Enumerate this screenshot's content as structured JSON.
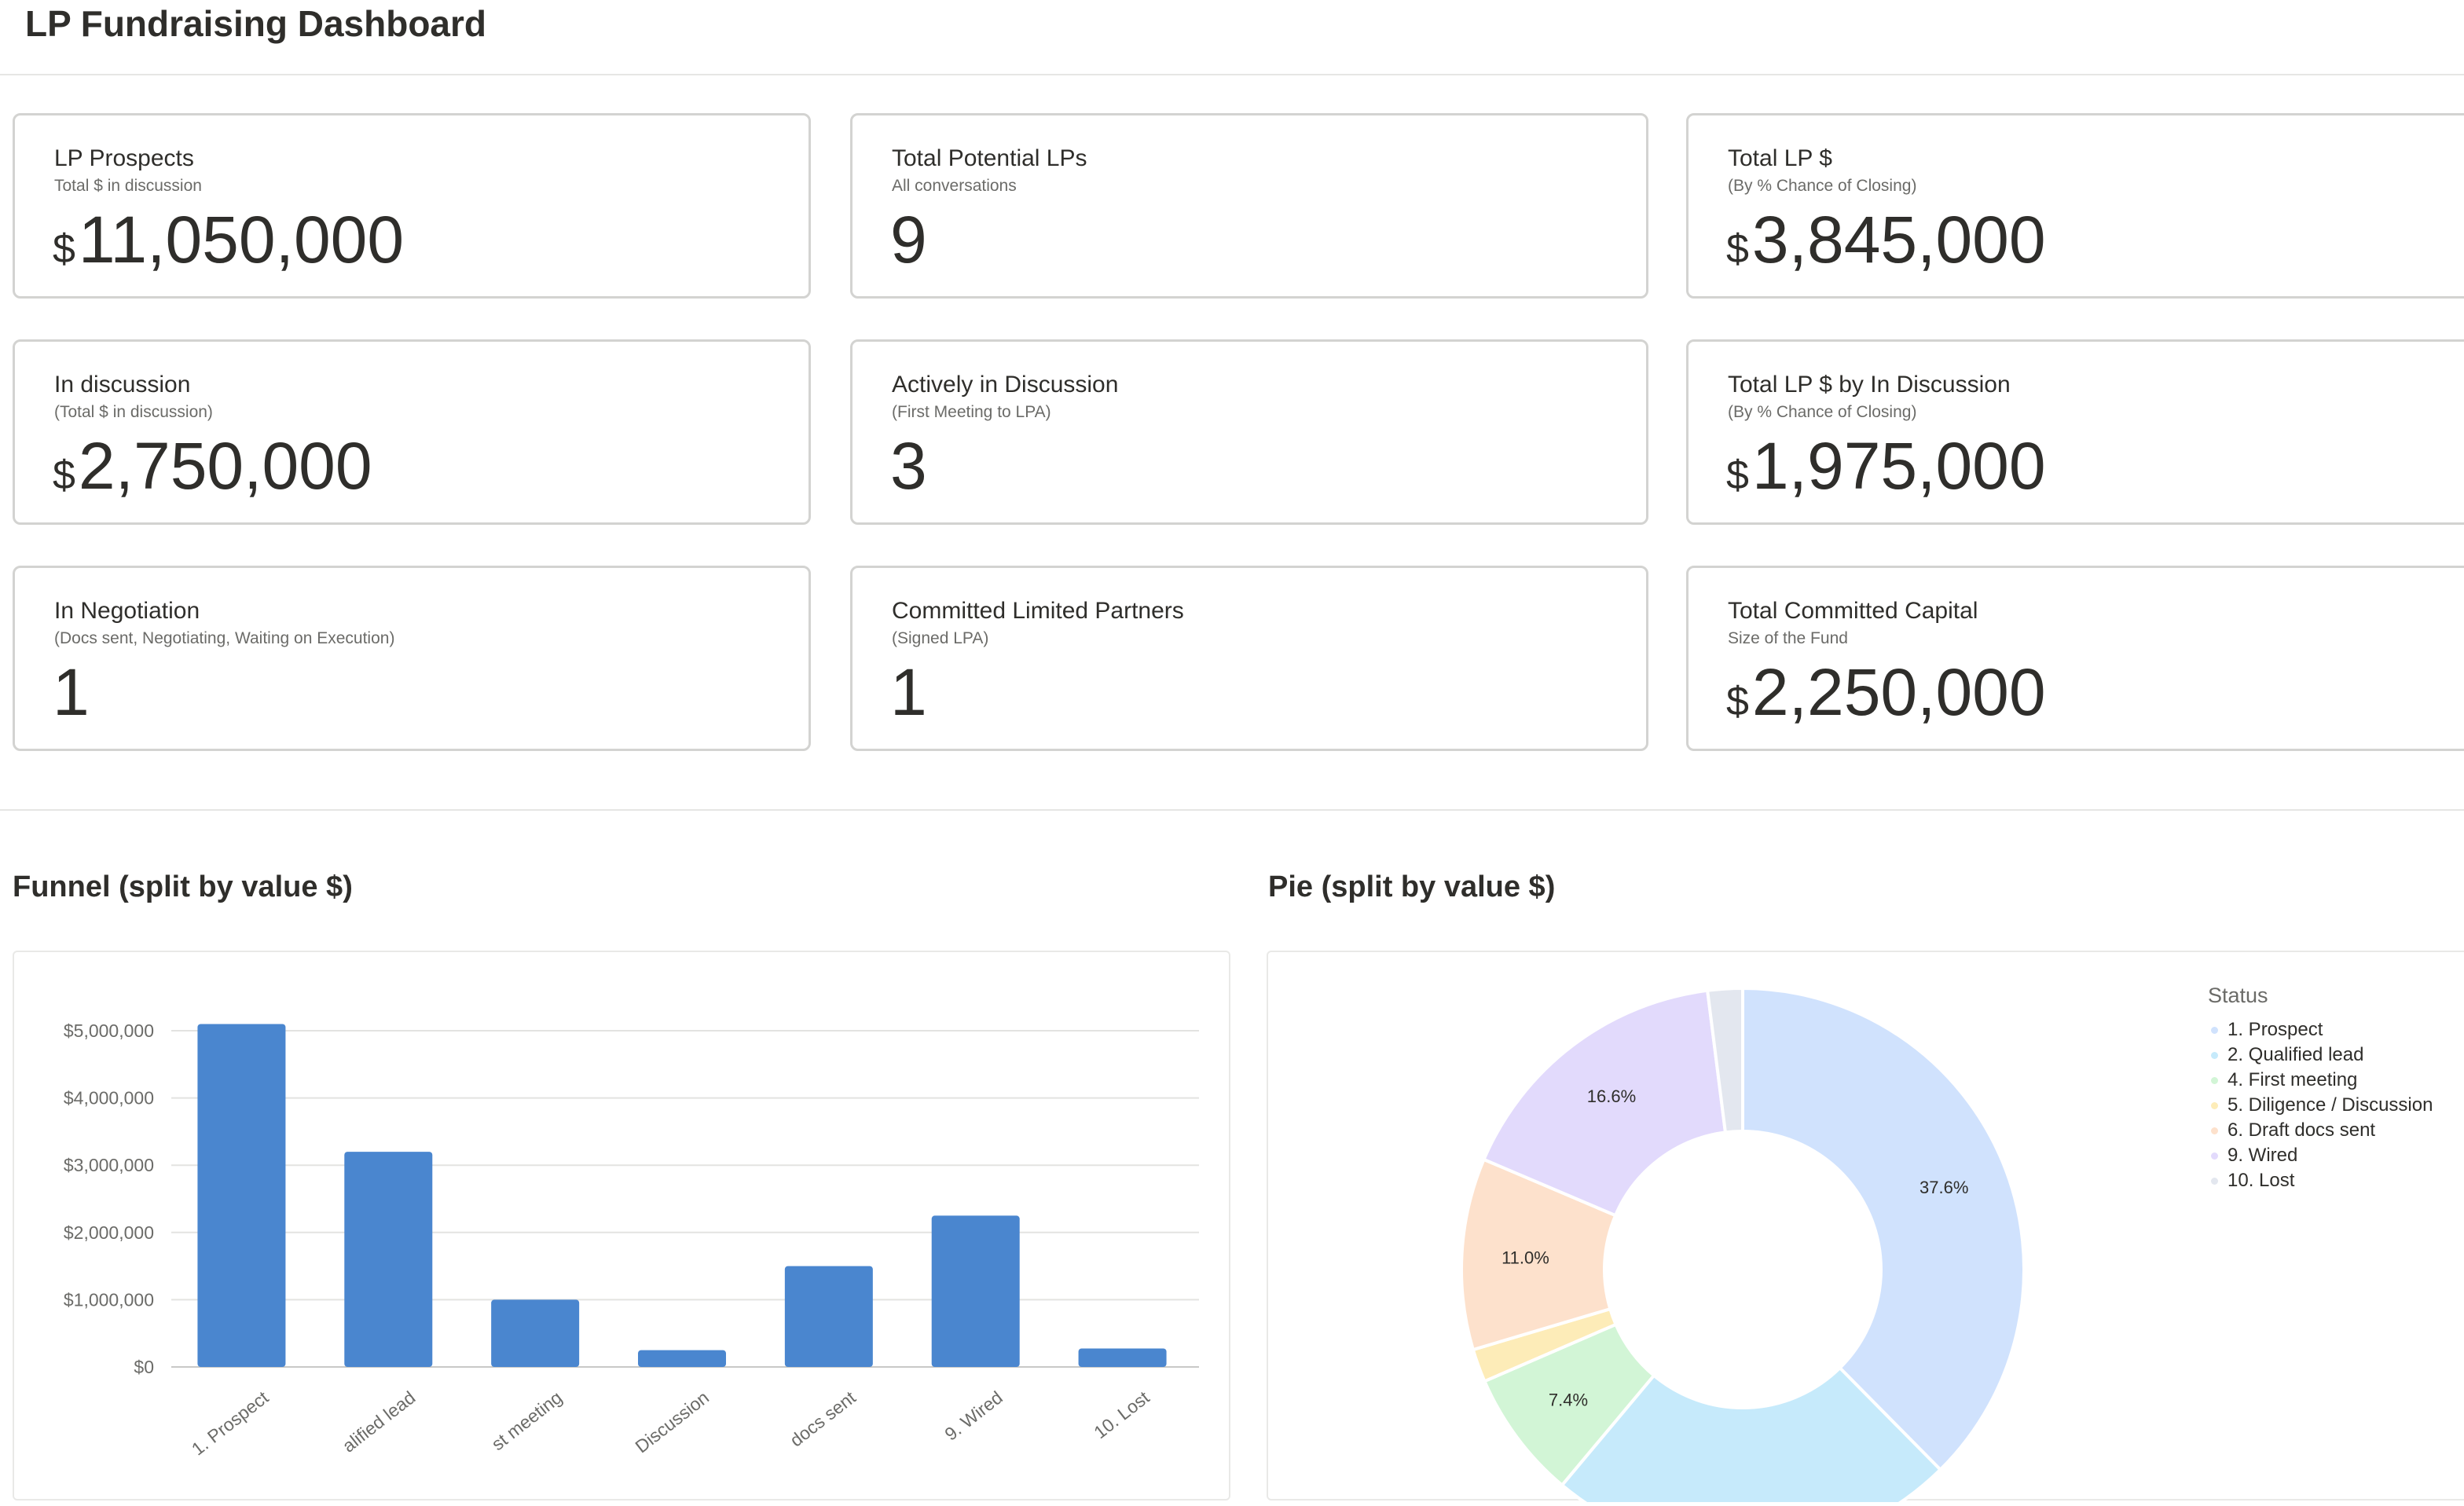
{
  "page": {
    "title": "LP Fundraising Dashboard"
  },
  "cards": [
    {
      "title": "LP Prospects",
      "subtitle": "Total $ in discussion",
      "currency": "$",
      "value": "11,050,000"
    },
    {
      "title": "Total Potential LPs",
      "subtitle": "All conversations",
      "currency": "",
      "value": "9"
    },
    {
      "title": "Total LP $",
      "subtitle": "(By % Chance of Closing)",
      "currency": "$",
      "value": "3,845,000"
    },
    {
      "title": "In discussion",
      "subtitle": "(Total $ in discussion)",
      "currency": "$",
      "value": "2,750,000"
    },
    {
      "title": "Actively in Discussion",
      "subtitle": "(First Meeting to LPA)",
      "currency": "",
      "value": "3"
    },
    {
      "title": "Total LP $ by In Discussion",
      "subtitle": "(By % Chance of Closing)",
      "currency": "$",
      "value": "1,975,000"
    },
    {
      "title": "In Negotiation",
      "subtitle": "(Docs sent, Negotiating, Waiting on Execution)",
      "currency": "",
      "value": "1"
    },
    {
      "title": "Committed Limited Partners",
      "subtitle": "(Signed LPA)",
      "currency": "",
      "value": "1"
    },
    {
      "title": "Total Committed Capital",
      "subtitle": "Size of the Fund",
      "currency": "$",
      "value": "2,250,000"
    }
  ],
  "funnel": {
    "title": "Funnel (split by value $)"
  },
  "pie": {
    "title": "Pie (split by value $)"
  },
  "chart_data": [
    {
      "type": "bar",
      "categories": [
        "1. Prospect",
        "2. Qualified lead",
        "4. First meeting",
        "5. Diligence / Discussion",
        "6. Draft docs sent",
        "9. Wired",
        "10. Lost"
      ],
      "tick_labels": [
        "1. Prospect",
        "alified lead",
        "st meeting",
        "Discussion",
        "docs sent",
        "9. Wired",
        "10. Lost"
      ],
      "values": [
        5100000,
        3200000,
        1000000,
        250000,
        1500000,
        2250000,
        275000
      ],
      "ylim": [
        0,
        5000000
      ],
      "yticks": [
        0,
        1000000,
        2000000,
        3000000,
        4000000,
        5000000
      ],
      "ytick_labels": [
        "$0",
        "$1,000,000",
        "$2,000,000",
        "$3,000,000",
        "$4,000,000",
        "$5,000,000"
      ],
      "color": "#4a86cf",
      "grid": true
    },
    {
      "type": "pie",
      "legend_title": "Status",
      "legend_position": "right",
      "slices": [
        {
          "label": "1. Prospect",
          "percent": 37.6,
          "display": "37.6%",
          "color": "#d0e2fd"
        },
        {
          "label": "2. Qualified lead",
          "percent": 23.5,
          "display": "",
          "color": "#c6eafb"
        },
        {
          "label": "4. First meeting",
          "percent": 7.4,
          "display": "7.4%",
          "color": "#d2f5d6"
        },
        {
          "label": "5. Diligence / Discussion",
          "percent": 1.9,
          "display": "",
          "color": "#fdecb8"
        },
        {
          "label": "6. Draft docs sent",
          "percent": 11.0,
          "display": "11.0%",
          "color": "#fde1cc"
        },
        {
          "label": "9. Wired",
          "percent": 16.6,
          "display": "16.6%",
          "color": "#e2dafc"
        },
        {
          "label": "10. Lost",
          "percent": 2.0,
          "display": "",
          "color": "#e3e7ef"
        }
      ]
    }
  ]
}
